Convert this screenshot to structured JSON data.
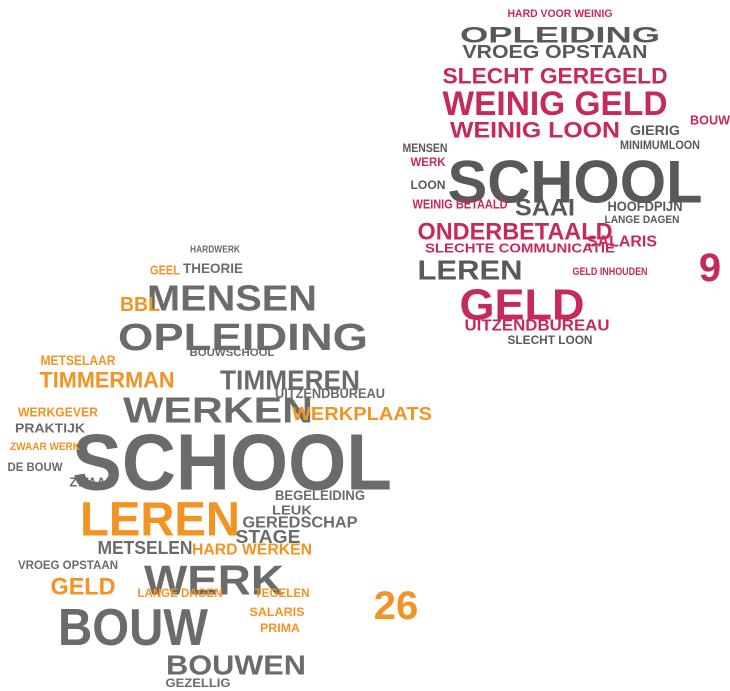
{
  "clouds": [
    {
      "base_color": "#6b6b6b",
      "accent_color": "#f39323",
      "count": 26,
      "words": [
        {
          "text": "HARDWERK",
          "accent": false
        },
        {
          "text": "GEEL",
          "accent": true
        },
        {
          "text": "THEORIE",
          "accent": false
        },
        {
          "text": "MENSEN",
          "accent": false
        },
        {
          "text": "BBL",
          "accent": true
        },
        {
          "text": "OPLEIDING",
          "accent": false
        },
        {
          "text": "METSELAAR",
          "accent": true
        },
        {
          "text": "BOUWSCHOOL",
          "accent": false
        },
        {
          "text": "TIMMERMAN",
          "accent": true
        },
        {
          "text": "TIMMEREN",
          "accent": false
        },
        {
          "text": "UITZENDBUREAU",
          "accent": false
        },
        {
          "text": "WERKEN",
          "accent": false
        },
        {
          "text": "WERKPLAATS",
          "accent": true
        },
        {
          "text": "WERKGEVER",
          "accent": true
        },
        {
          "text": "PRAKTIJK",
          "accent": false
        },
        {
          "text": "SCHOOL",
          "accent": false
        },
        {
          "text": "ZWAAR WERK",
          "accent": true
        },
        {
          "text": "DE BOUW",
          "accent": false
        },
        {
          "text": "ZWAAR",
          "accent": false
        },
        {
          "text": "LEREN",
          "accent": true
        },
        {
          "text": "BEGELEIDING",
          "accent": false
        },
        {
          "text": "LEUK",
          "accent": false
        },
        {
          "text": "GEREDSCHAP",
          "accent": false
        },
        {
          "text": "STAGE",
          "accent": false
        },
        {
          "text": "METSELEN",
          "accent": false
        },
        {
          "text": "HARD WERKEN",
          "accent": true
        },
        {
          "text": "WERK",
          "accent": false
        },
        {
          "text": "VROEG OPSTAAN",
          "accent": false
        },
        {
          "text": "GELD",
          "accent": true
        },
        {
          "text": "LANGE DAGEN",
          "accent": true
        },
        {
          "text": "TEGELEN",
          "accent": true
        },
        {
          "text": "SALARIS",
          "accent": true
        },
        {
          "text": "PRIMA",
          "accent": true
        },
        {
          "text": "BOUW",
          "accent": false
        },
        {
          "text": "BOUWEN",
          "accent": false
        },
        {
          "text": "GEZELLIG",
          "accent": false
        }
      ]
    },
    {
      "base_color": "#595959",
      "accent_color": "#c62a5a",
      "count": 9,
      "words": [
        {
          "text": "HARD VOOR WEINIG",
          "accent": true
        },
        {
          "text": "OPLEIDING",
          "accent": false
        },
        {
          "text": "VROEG OPSTAAN",
          "accent": false
        },
        {
          "text": "SLECHT GEREGELD",
          "accent": true
        },
        {
          "text": "WEINIG GELD",
          "accent": true
        },
        {
          "text": "WEINIG LOON",
          "accent": true
        },
        {
          "text": "GIERIG",
          "accent": false
        },
        {
          "text": "MINIMUMLOON",
          "accent": false
        },
        {
          "text": "MENSEN",
          "accent": false
        },
        {
          "text": "SCHOOL",
          "accent": false
        },
        {
          "text": "SAAI",
          "accent": false
        },
        {
          "text": "HOOFDPIJN",
          "accent": false
        },
        {
          "text": "LANGE DAGEN",
          "accent": false
        },
        {
          "text": "WERK",
          "accent": true
        },
        {
          "text": "LOON",
          "accent": false
        },
        {
          "text": "WEINIG BETAALD",
          "accent": true
        },
        {
          "text": "ONDERBETAALD",
          "accent": true
        },
        {
          "text": "SLECHTE COMMUNICATIE",
          "accent": true
        },
        {
          "text": "SALARIS",
          "accent": true
        },
        {
          "text": "LEREN",
          "accent": false
        },
        {
          "text": "GELD INHOUDEN",
          "accent": true
        },
        {
          "text": "GELD",
          "accent": true
        },
        {
          "text": "UITZENDBUREAU",
          "accent": true
        },
        {
          "text": "SLECHT LOON",
          "accent": false
        },
        {
          "text": "BOUW",
          "accent": true
        }
      ]
    }
  ]
}
